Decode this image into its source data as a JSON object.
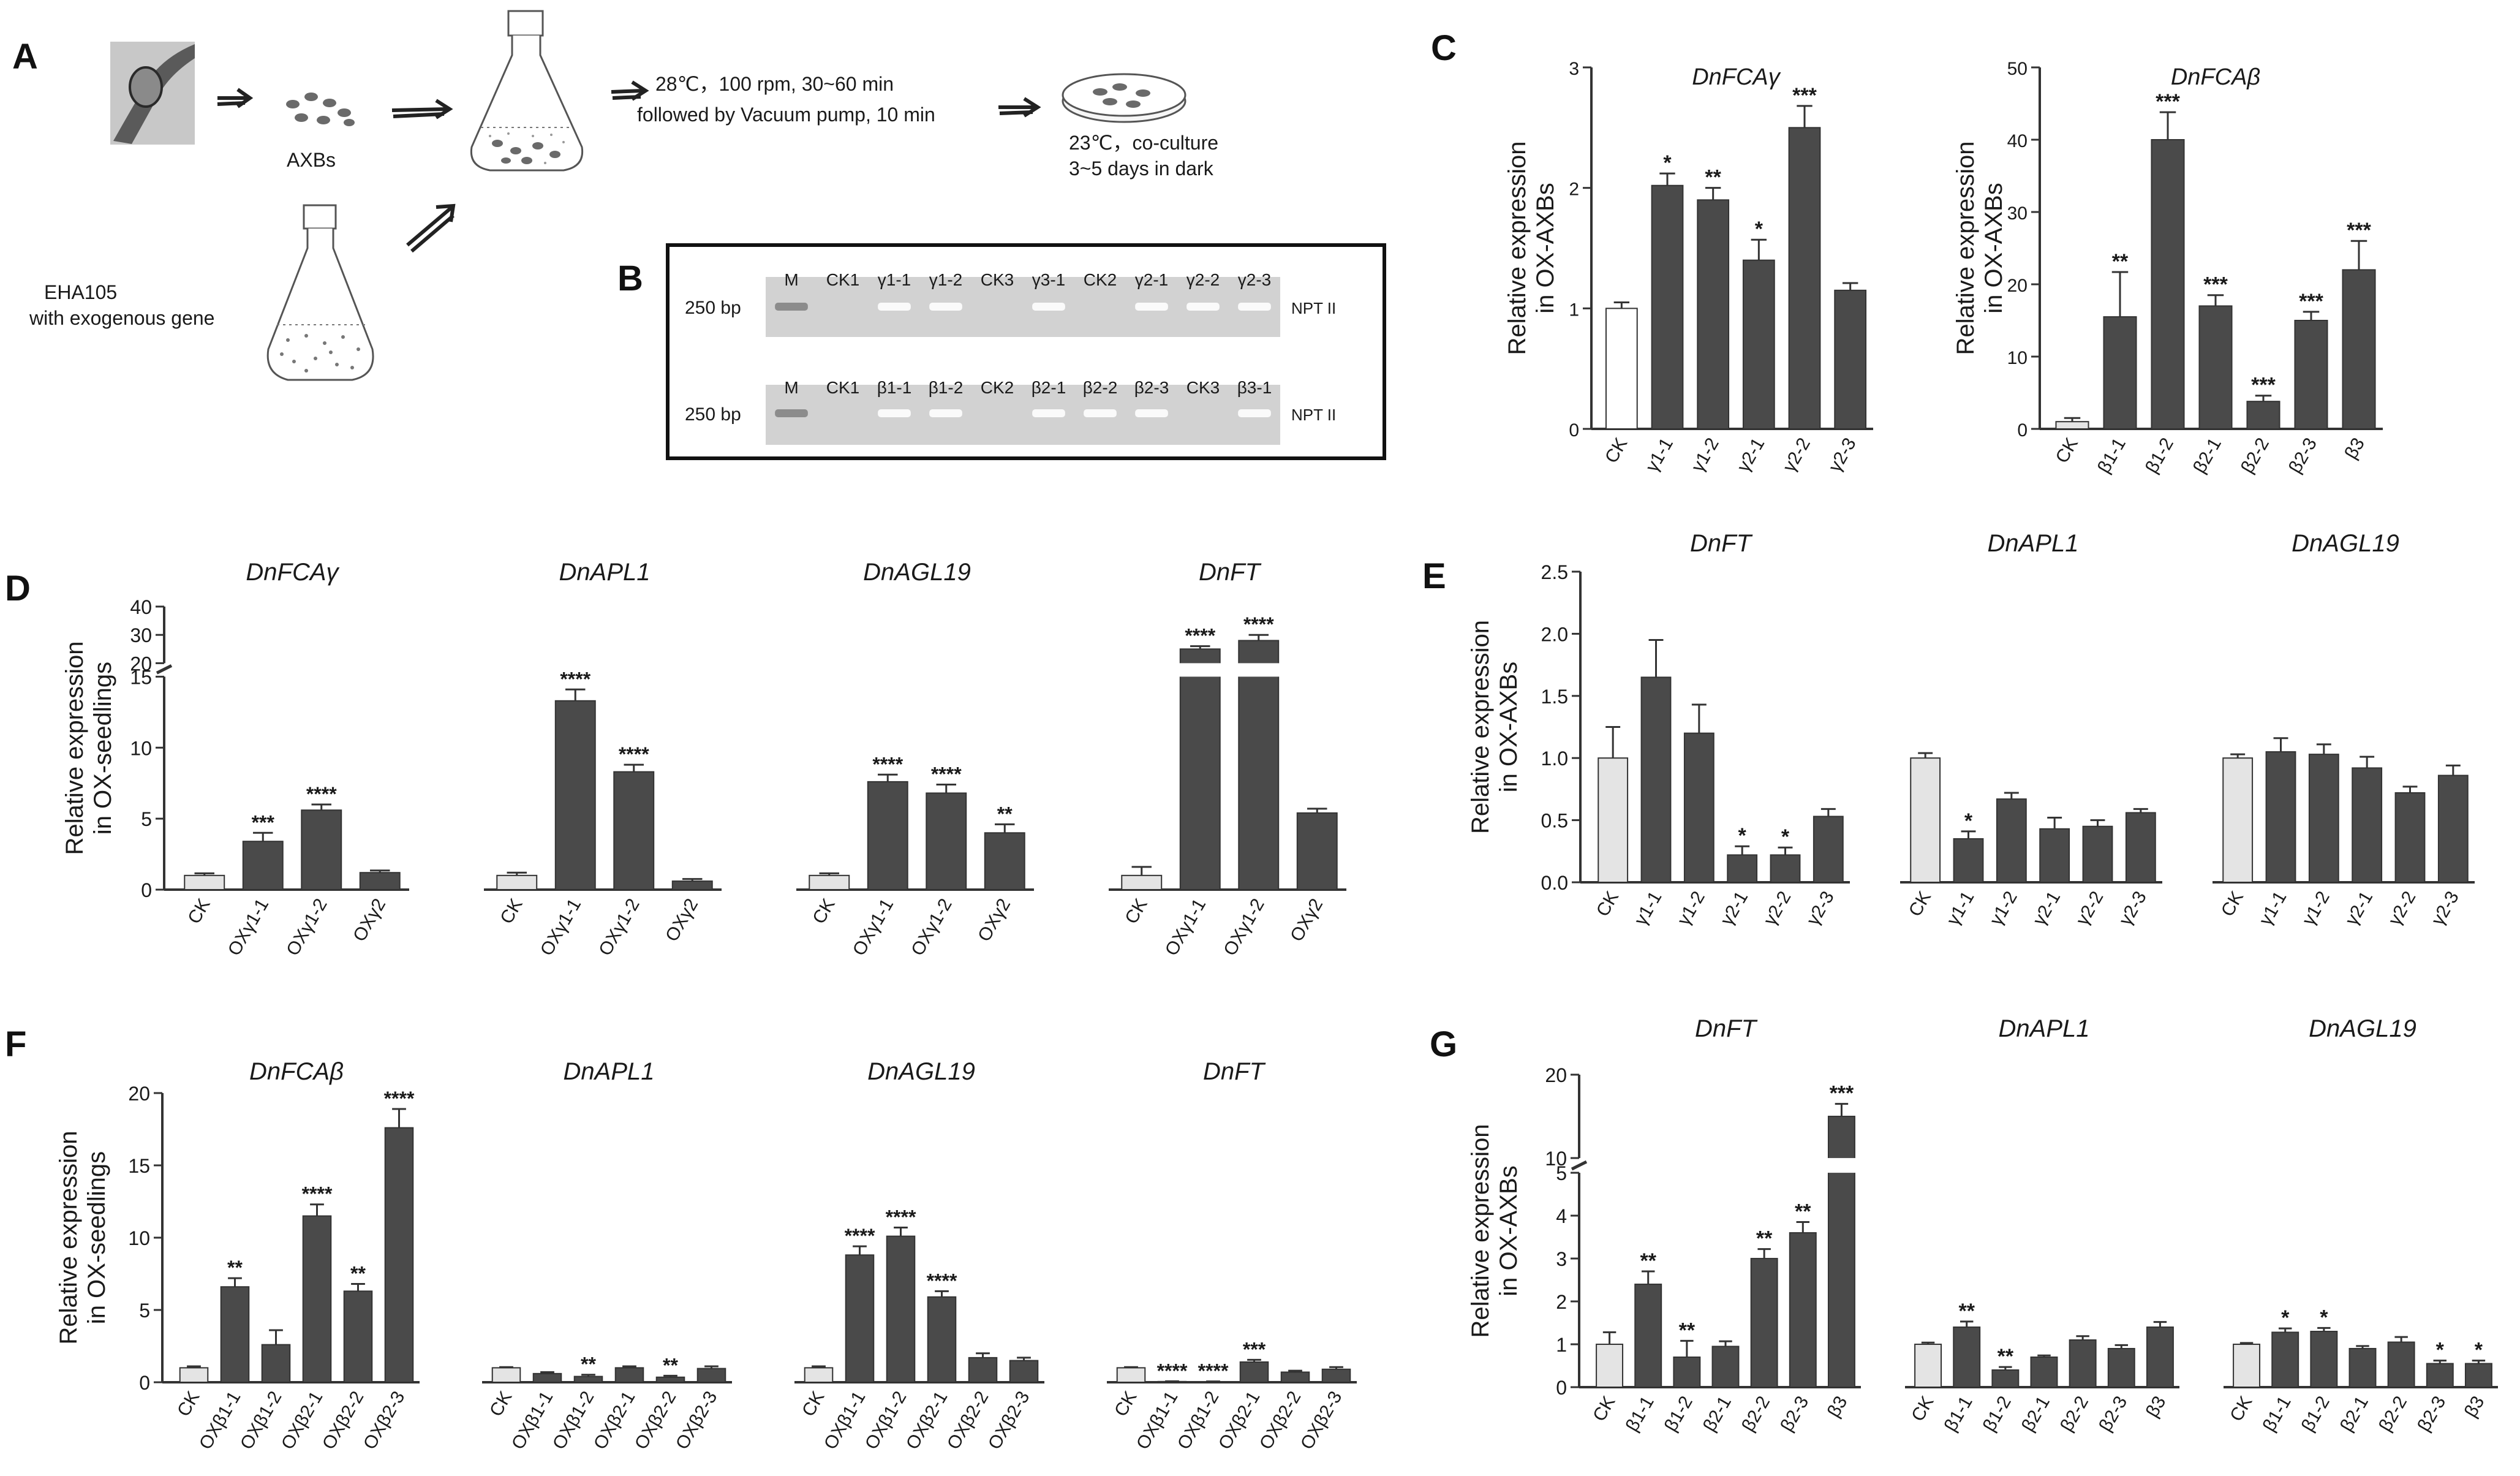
{
  "colors": {
    "bar": "#4a4a4a",
    "bar_ck": "#e4e4e4",
    "axis": "#333333",
    "gel": "#d2d2d2",
    "text": "#1a1a1a"
  },
  "panel_letters": [
    "A",
    "B",
    "C",
    "D",
    "E",
    "F",
    "G"
  ],
  "panel_a": {
    "step1_label": "AXBs",
    "step2_lines": [
      "28℃，100 rpm, 30~60 min",
      "followed by Vacuum pump, 10 min"
    ],
    "step3_lines": [
      "23℃，co-culture",
      "3~5 days in dark"
    ],
    "strain_lines": [
      "EHA105",
      "with exogenous gene"
    ]
  },
  "panel_b": {
    "rows": [
      {
        "size_label": "250 bp",
        "gene_label": "NPT II",
        "lanes": [
          "M",
          "CK1",
          "γ1-1",
          "γ1-2",
          "CK3",
          "γ3-1",
          "CK2",
          "γ2-1",
          "γ2-2",
          "γ2-3"
        ],
        "band_present": [
          1,
          0,
          1,
          1,
          0,
          1,
          0,
          1,
          1,
          1
        ]
      },
      {
        "size_label": "250 bp",
        "gene_label": "NPT II",
        "lanes": [
          "M",
          "CK1",
          "β1-1",
          "β1-2",
          "CK2",
          "β2-1",
          "β2-2",
          "β2-3",
          "CK3",
          "β3-1"
        ],
        "band_present": [
          1,
          0,
          1,
          1,
          0,
          1,
          1,
          1,
          0,
          1
        ]
      }
    ]
  },
  "chart_data": [
    {
      "id": "C1",
      "type": "bar",
      "title": "DnFCAγ",
      "ylabel": "Relative expression in OX-AXBs",
      "ylim": [
        0,
        3
      ],
      "yticks": [
        "0",
        "1",
        "2",
        "3"
      ],
      "ytick_values": [
        0,
        1,
        2,
        3
      ],
      "categories": [
        "CK",
        "γ1-1",
        "γ1-2",
        "γ2-1",
        "γ2-2",
        "γ2-3"
      ],
      "values": [
        1.0,
        2.02,
        1.9,
        1.4,
        2.5,
        1.15
      ],
      "errors": [
        0.05,
        0.1,
        0.1,
        0.17,
        0.18,
        0.06
      ],
      "sig": [
        "",
        "*",
        "**",
        "*",
        "***",
        ""
      ]
    },
    {
      "id": "C2",
      "type": "bar",
      "title": "DnFCAβ",
      "ylabel": "Relative expression in OX-AXBs",
      "ylim": [
        0,
        50
      ],
      "yticks": [
        "0",
        "10",
        "20",
        "30",
        "40",
        "50"
      ],
      "ytick_values": [
        0,
        10,
        20,
        30,
        40,
        50
      ],
      "categories": [
        "CK",
        "β1-1",
        "β1-2",
        "β2-1",
        "β2-2",
        "β2-3",
        "β3"
      ],
      "values": [
        1.0,
        15.5,
        40.0,
        17.0,
        3.8,
        15.0,
        22.0
      ],
      "errors": [
        0.5,
        6.2,
        3.8,
        1.5,
        0.8,
        1.2,
        4.0
      ],
      "sig": [
        "",
        "**",
        "***",
        "***",
        "***",
        "***",
        "***"
      ]
    },
    {
      "id": "D",
      "type": "bar",
      "ylabel": "Relative expression in OX-seedlings",
      "ylim": [
        0,
        40
      ],
      "axis_break": [
        15,
        20
      ],
      "yticks": [
        "0",
        "5",
        "10",
        "15",
        "20",
        "30",
        "40"
      ],
      "ytick_values": [
        0,
        5,
        10,
        15,
        20,
        30,
        40
      ],
      "group_titles": [
        "DnFCAγ",
        "DnAPL1",
        "DnAGL19",
        "DnFT"
      ],
      "categories": [
        "CK",
        "OXγ1-1",
        "OXγ1-2",
        "OXγ2"
      ],
      "series": [
        {
          "name": "DnFCAγ",
          "values": [
            1.0,
            3.4,
            5.6,
            1.2
          ],
          "errors": [
            0.15,
            0.6,
            0.4,
            0.15
          ],
          "sig": [
            "",
            "***",
            "****",
            ""
          ]
        },
        {
          "name": "DnAPL1",
          "values": [
            1.0,
            13.3,
            8.3,
            0.6
          ],
          "errors": [
            0.2,
            0.8,
            0.5,
            0.15
          ],
          "sig": [
            "",
            "****",
            "****",
            ""
          ]
        },
        {
          "name": "DnAGL19",
          "values": [
            1.0,
            7.6,
            6.8,
            4.0
          ],
          "errors": [
            0.15,
            0.5,
            0.6,
            0.6
          ],
          "sig": [
            "",
            "****",
            "****",
            "**"
          ]
        },
        {
          "name": "DnFT",
          "values": [
            1.0,
            25.0,
            28.0,
            5.4
          ],
          "errors": [
            0.6,
            1.0,
            2.0,
            0.3
          ],
          "sig": [
            "",
            "****",
            "****",
            ""
          ]
        }
      ]
    },
    {
      "id": "E",
      "type": "bar",
      "ylabel": "Relative expression in OX-AXBs",
      "ylim": [
        0,
        2.5
      ],
      "yticks": [
        "0.0",
        "0.5",
        "1.0",
        "1.5",
        "2.0",
        "2.5"
      ],
      "ytick_values": [
        0,
        0.5,
        1.0,
        1.5,
        2.0,
        2.5
      ],
      "group_titles": [
        "DnFT",
        "DnAPL1",
        "DnAGL19"
      ],
      "categories": [
        "CK",
        "γ1-1",
        "γ1-2",
        "γ2-1",
        "γ2-2",
        "γ2-3"
      ],
      "series": [
        {
          "name": "DnFT",
          "values": [
            1.0,
            1.65,
            1.2,
            0.22,
            0.22,
            0.53
          ],
          "errors": [
            0.25,
            0.3,
            0.23,
            0.07,
            0.06,
            0.06
          ],
          "sig": [
            "",
            "",
            "",
            "*",
            "*",
            ""
          ]
        },
        {
          "name": "DnAPL1",
          "values": [
            1.0,
            0.35,
            0.67,
            0.43,
            0.45,
            0.56
          ],
          "errors": [
            0.04,
            0.06,
            0.05,
            0.09,
            0.05,
            0.03
          ],
          "sig": [
            "",
            "*",
            "",
            "",
            "",
            ""
          ]
        },
        {
          "name": "DnAGL19",
          "values": [
            1.0,
            1.05,
            1.03,
            0.92,
            0.72,
            0.86
          ],
          "errors": [
            0.03,
            0.11,
            0.08,
            0.09,
            0.05,
            0.08
          ],
          "sig": [
            "",
            "",
            "",
            "",
            "",
            ""
          ]
        }
      ]
    },
    {
      "id": "F",
      "type": "bar",
      "ylabel": "Relative expression in OX-seedlings",
      "ylim": [
        0,
        20
      ],
      "yticks": [
        "0",
        "5",
        "10",
        "15",
        "20"
      ],
      "ytick_values": [
        0,
        5,
        10,
        15,
        20
      ],
      "group_titles": [
        "DnFCAβ",
        "DnAPL1",
        "DnAGL19",
        "DnFT"
      ],
      "categories": [
        "CK",
        "OXβ1-1",
        "OXβ1-2",
        "OXβ2-1",
        "OXβ2-2",
        "OXβ2-3"
      ],
      "series": [
        {
          "name": "DnFCAβ",
          "values": [
            1.0,
            6.6,
            2.6,
            11.5,
            6.3,
            17.6
          ],
          "errors": [
            0.1,
            0.6,
            1.0,
            0.8,
            0.5,
            1.3
          ],
          "sig": [
            "",
            "**",
            "",
            "****",
            "**",
            "****"
          ]
        },
        {
          "name": "DnAPL1",
          "values": [
            1.0,
            0.6,
            0.4,
            1.0,
            0.35,
            0.95
          ],
          "errors": [
            0.05,
            0.1,
            0.12,
            0.1,
            0.1,
            0.15
          ],
          "sig": [
            "",
            "",
            "**",
            "",
            "**",
            ""
          ]
        },
        {
          "name": "DnAGL19",
          "values": [
            1.0,
            8.8,
            10.1,
            5.9,
            1.7,
            1.5
          ],
          "errors": [
            0.1,
            0.6,
            0.6,
            0.4,
            0.3,
            0.2
          ],
          "sig": [
            "",
            "****",
            "****",
            "****",
            "",
            ""
          ]
        },
        {
          "name": "DnFT",
          "values": [
            1.0,
            0.05,
            0.04,
            1.4,
            0.7,
            0.9
          ],
          "errors": [
            0.05,
            0.02,
            0.02,
            0.15,
            0.1,
            0.15
          ],
          "sig": [
            "",
            "****",
            "****",
            "***",
            "",
            ""
          ]
        }
      ]
    },
    {
      "id": "G",
      "type": "bar",
      "ylabel": "Relative expression in OX-AXBs",
      "ylim": [
        0,
        20
      ],
      "axis_break": [
        5,
        10
      ],
      "yticks": [
        "0",
        "1",
        "2",
        "3",
        "4",
        "5",
        "10",
        "20"
      ],
      "ytick_values": [
        0,
        1,
        2,
        3,
        4,
        5,
        10,
        20
      ],
      "group_titles": [
        "DnFT",
        "DnAPL1",
        "DnAGL19"
      ],
      "categories": [
        "CK",
        "β1-1",
        "β1-2",
        "β2-1",
        "β2-2",
        "β2-3",
        "β3"
      ],
      "series": [
        {
          "name": "DnFT",
          "values": [
            1.0,
            2.4,
            0.7,
            0.95,
            3.0,
            3.6,
            15.0
          ],
          "errors": [
            0.28,
            0.3,
            0.38,
            0.12,
            0.22,
            0.25,
            1.5
          ],
          "sig": [
            "",
            "**",
            "**",
            "",
            "**",
            "**",
            "***"
          ]
        },
        {
          "name": "DnAPL1",
          "values": [
            1.0,
            1.4,
            0.4,
            0.7,
            1.1,
            0.9,
            1.4
          ],
          "errors": [
            0.04,
            0.13,
            0.07,
            0.04,
            0.09,
            0.08,
            0.12
          ],
          "sig": [
            "",
            "**",
            "**",
            "",
            "",
            "",
            ""
          ]
        },
        {
          "name": "DnAGL19",
          "values": [
            1.0,
            1.28,
            1.3,
            0.9,
            1.05,
            0.55,
            0.55
          ],
          "errors": [
            0.03,
            0.09,
            0.08,
            0.06,
            0.12,
            0.07,
            0.07
          ],
          "sig": [
            "",
            "*",
            "*",
            "",
            "",
            "*",
            "*"
          ]
        }
      ]
    }
  ]
}
